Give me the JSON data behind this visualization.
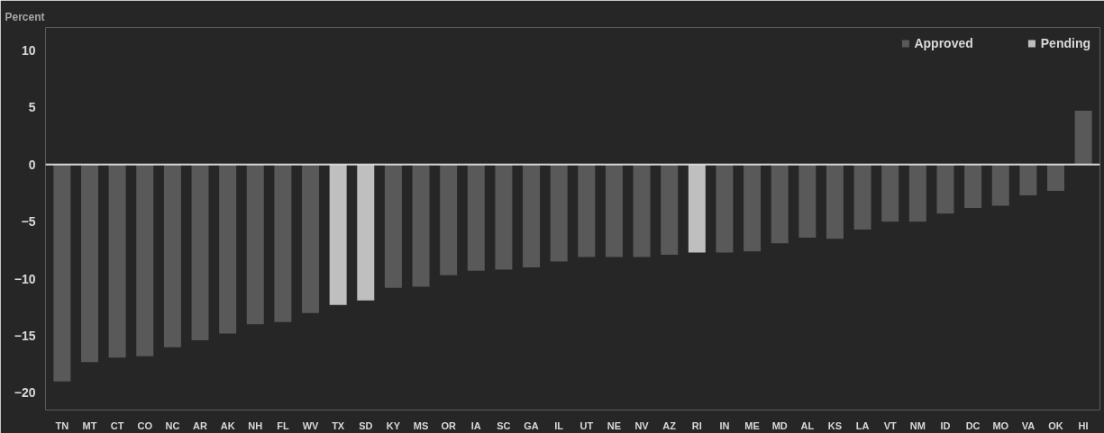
{
  "chart_data": {
    "type": "bar",
    "ylabel": "Percent",
    "stacked": true,
    "categories": [
      "TN",
      "MT",
      "CT",
      "CO",
      "NC",
      "AR",
      "AK",
      "NH",
      "FL",
      "WV",
      "TX",
      "SD",
      "KY",
      "MS",
      "OR",
      "IA",
      "SC",
      "GA",
      "IL",
      "UT",
      "NE",
      "NV",
      "AZ",
      "RI",
      "IN",
      "ME",
      "MD",
      "AL",
      "KS",
      "LA",
      "VT",
      "NM",
      "ID",
      "DC",
      "MO",
      "VA",
      "OK",
      "HI"
    ],
    "series": [
      {
        "name": "Approved",
        "color": "#595959",
        "values": [
          -19.0,
          -17.3,
          -16.9,
          -16.8,
          -16.0,
          -15.4,
          -14.8,
          -14.0,
          -13.8,
          -13.0,
          null,
          null,
          -10.8,
          -10.7,
          -9.7,
          -9.3,
          -9.2,
          -9.0,
          -8.5,
          -8.1,
          -8.1,
          -8.1,
          -7.9,
          null,
          -7.7,
          -7.6,
          -6.9,
          -6.4,
          -6.5,
          -5.7,
          -5.0,
          -5.0,
          -4.3,
          -3.8,
          -3.6,
          -2.7,
          -2.3,
          4.7
        ]
      },
      {
        "name": "Pending",
        "color": "#bfbfbf",
        "values": [
          null,
          null,
          null,
          null,
          null,
          null,
          null,
          null,
          null,
          null,
          -12.3,
          -11.9,
          null,
          null,
          null,
          null,
          null,
          null,
          null,
          null,
          null,
          null,
          null,
          -7.7,
          null,
          null,
          null,
          null,
          null,
          null,
          null,
          null,
          null,
          null,
          null,
          null,
          null,
          null
        ]
      }
    ],
    "ylim": [
      -21.5,
      12
    ],
    "yticks": [
      -20,
      -15,
      -10,
      -5,
      0,
      5,
      10
    ],
    "ref_lines": [
      {
        "axis": "y",
        "value": 0,
        "color": "#d9d9d9"
      }
    ],
    "grid": false,
    "legend": "top right"
  }
}
